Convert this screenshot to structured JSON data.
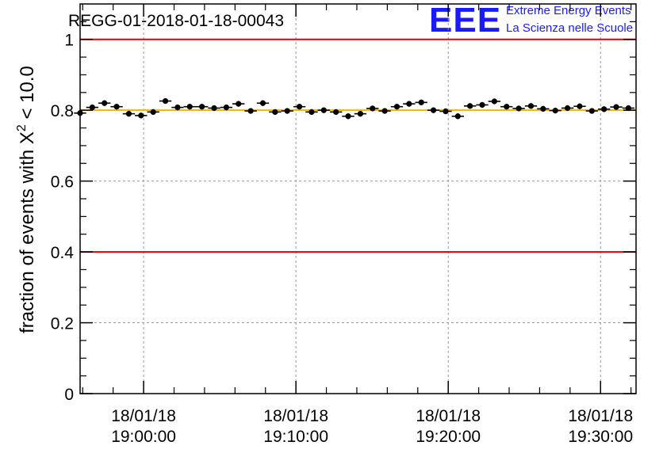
{
  "title": "REGG-01-2018-01-18-00043",
  "logo": {
    "letters": "EEE",
    "line1": "Extreme Energy Events",
    "line2": "La Scienza nelle Scuole"
  },
  "colors": {
    "limit_line": "#e00000",
    "mean_line": "#f2b400",
    "grid": "#999999",
    "markers": "#000000",
    "logo": "#1a1aff"
  },
  "chart_data": {
    "type": "scatter",
    "title": "REGG-01-2018-01-18-00043",
    "ylabel_prefix": "fraction of events with ",
    "ylabel_symbol": "X",
    "ylabel_sup": "2",
    "ylabel_suffix": " < 10.0",
    "xlabel": "",
    "ylim": [
      0,
      1.1
    ],
    "yticks": [
      0,
      0.2,
      0.4,
      0.6,
      0.8,
      1
    ],
    "ytick_labels": [
      "0",
      "0.2",
      "0.4",
      "0.6",
      "0.8",
      "1"
    ],
    "x_unit": "minutes after 18:55:50",
    "xlim": [
      0,
      36.5
    ],
    "xticks": [
      4.17,
      14.17,
      24.17,
      34.17
    ],
    "xtick_labels": [
      {
        "date": "18/01/18",
        "time": "19:00:00"
      },
      {
        "date": "18/01/18",
        "time": "19:10:00"
      },
      {
        "date": "18/01/18",
        "time": "19:20:00"
      },
      {
        "date": "18/01/18",
        "time": "19:30:00"
      }
    ],
    "minor_xtick_step": 2,
    "reference_lines": [
      {
        "name": "upper-limit",
        "y": 1.0,
        "color": "#e00000"
      },
      {
        "name": "mean",
        "y": 0.8,
        "color": "#f2b400"
      },
      {
        "name": "lower-limit",
        "y": 0.4,
        "color": "#e00000"
      }
    ],
    "x_bin_halfwidth": 0.4,
    "y_error": 0.008,
    "x": [
      0,
      0.8,
      1.6,
      2.4,
      3.2,
      4.0,
      4.8,
      5.6,
      6.4,
      7.2,
      8.0,
      8.8,
      9.6,
      10.4,
      11.2,
      12.0,
      12.8,
      13.6,
      14.4,
      15.2,
      16.0,
      16.8,
      17.6,
      18.4,
      19.2,
      20.0,
      20.8,
      21.6,
      22.4,
      23.2,
      24.0,
      24.8,
      25.6,
      26.4,
      27.2,
      28.0,
      28.8,
      29.6,
      30.4,
      31.2,
      32.0,
      32.8,
      33.6,
      34.4,
      35.2,
      36.0
    ],
    "y": [
      0.792,
      0.808,
      0.82,
      0.81,
      0.79,
      0.785,
      0.795,
      0.826,
      0.808,
      0.81,
      0.81,
      0.806,
      0.808,
      0.818,
      0.798,
      0.82,
      0.795,
      0.798,
      0.81,
      0.795,
      0.8,
      0.795,
      0.783,
      0.79,
      0.805,
      0.798,
      0.81,
      0.818,
      0.822,
      0.8,
      0.797,
      0.783,
      0.812,
      0.815,
      0.825,
      0.81,
      0.805,
      0.812,
      0.804,
      0.799,
      0.806,
      0.811,
      0.798,
      0.803,
      0.809,
      0.806
    ]
  }
}
